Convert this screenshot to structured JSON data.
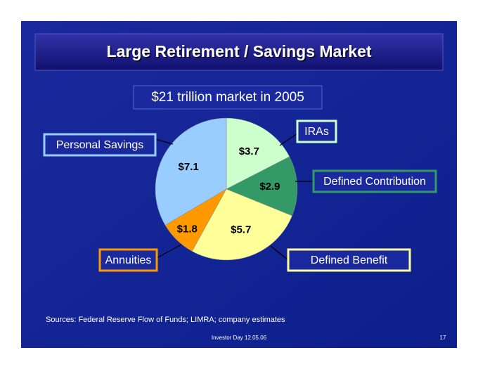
{
  "chart_data": {
    "type": "pie",
    "title": "Large Retirement / Savings Market",
    "subtitle": "$21 trillion market in 2005",
    "categories": [
      "IRAs",
      "Defined Contribution",
      "Defined Benefit",
      "Annuities",
      "Personal Savings"
    ],
    "values": [
      3.7,
      2.9,
      5.7,
      1.8,
      7.1
    ],
    "value_labels": [
      "$3.7",
      "$2.9",
      "$5.7",
      "$1.8",
      "$7.1"
    ],
    "colors": [
      "#ccffcc",
      "#339966",
      "#ffff99",
      "#ff9900",
      "#99ccff"
    ],
    "source": "Sources: Federal Reserve Flow of Funds; LIMRA; company estimates"
  },
  "footer": {
    "event": "Investor Day 12.05.06",
    "page": "17"
  }
}
